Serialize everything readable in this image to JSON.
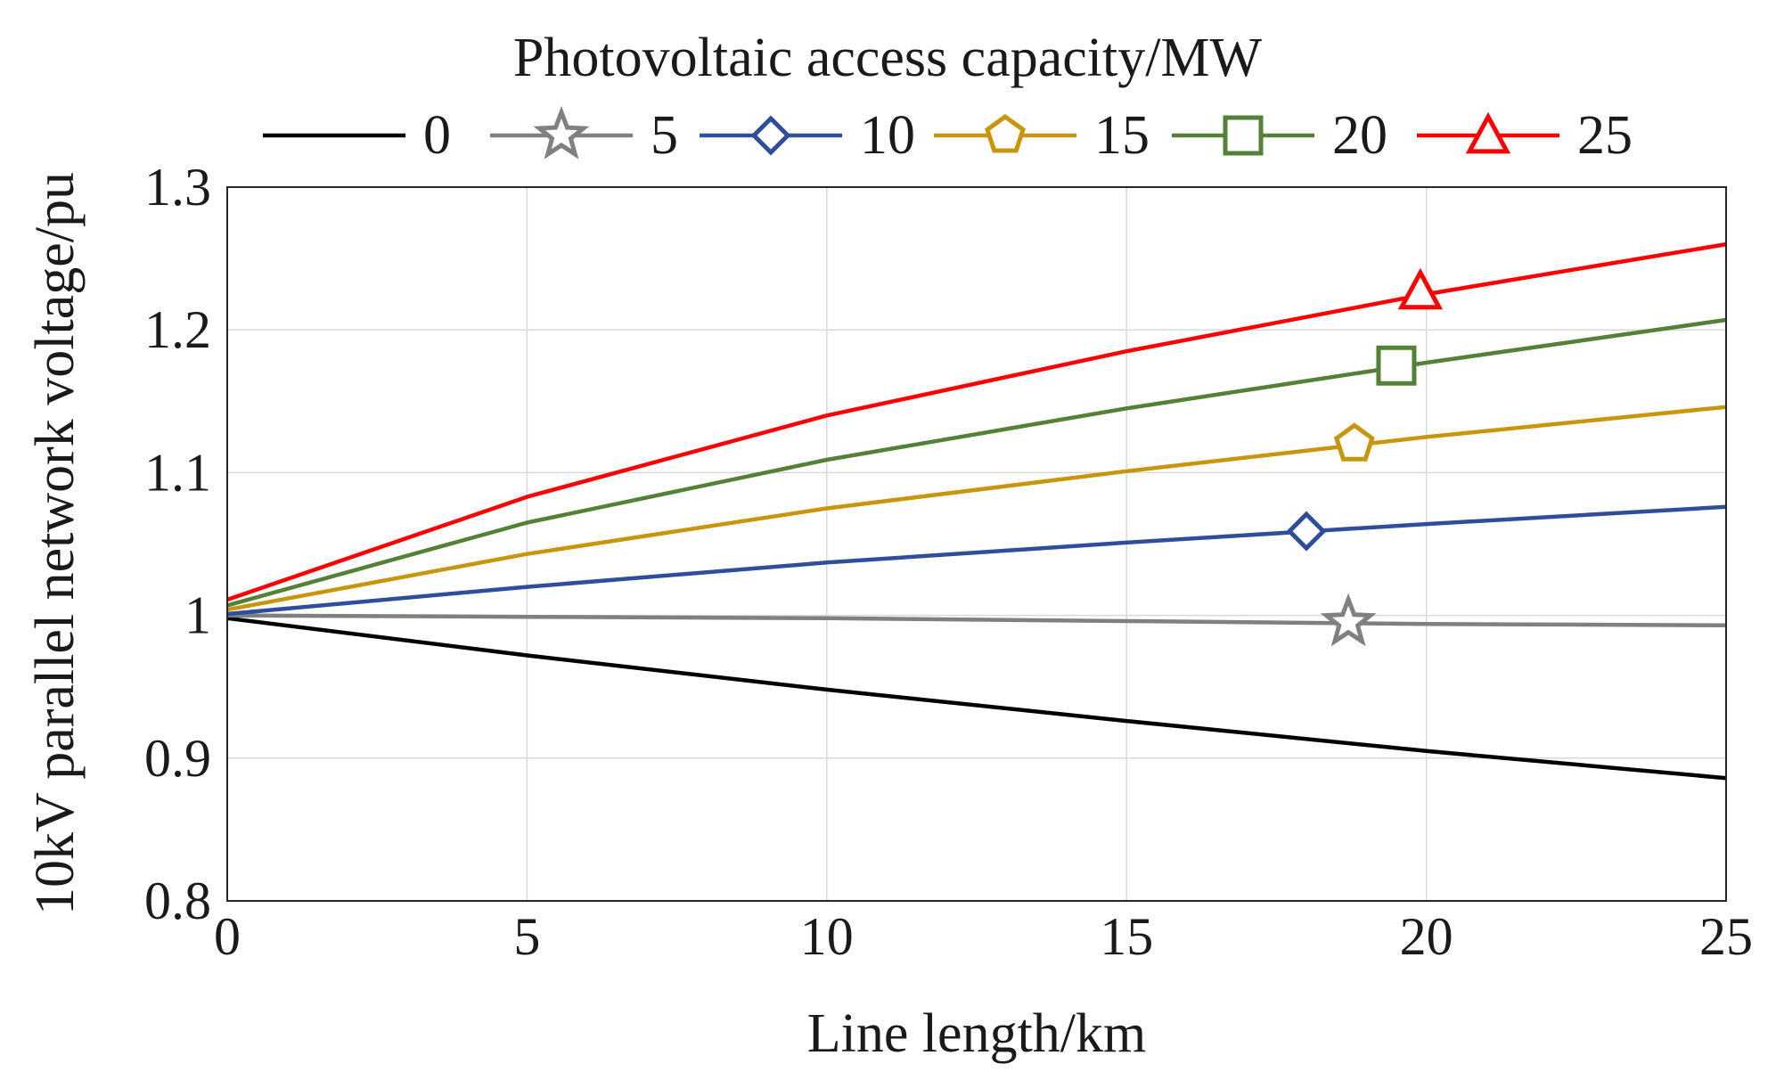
{
  "chart_data": {
    "type": "line",
    "title": "",
    "xlabel": "Line length/km",
    "ylabel": "10kV parallel network voltage/pu",
    "xlim": [
      0,
      25
    ],
    "ylim": [
      0.8,
      1.3
    ],
    "xticks": [
      0,
      5,
      10,
      15,
      20,
      25
    ],
    "yticks": [
      0.8,
      0.9,
      1.0,
      1.1,
      1.2,
      1.3
    ],
    "xtick_labels": [
      "0",
      "5",
      "10",
      "15",
      "20",
      "25"
    ],
    "ytick_labels": [
      "0.8",
      "0.9",
      "1",
      "1.1",
      "1.2",
      "1.3"
    ],
    "grid": true,
    "legend": {
      "title": "Photovoltaic access capacity/MW",
      "placement": "top",
      "orientation": "horizontal"
    },
    "x": [
      0,
      5,
      10,
      15,
      20,
      25
    ],
    "series": [
      {
        "name": "0",
        "color": "#000000",
        "marker": "none",
        "values": [
          0.998,
          0.972,
          0.948,
          0.926,
          0.905,
          0.886
        ]
      },
      {
        "name": "5",
        "color": "#808080",
        "marker": "star",
        "values": [
          1.0,
          0.999,
          0.998,
          0.996,
          0.994,
          0.993
        ],
        "marker_at": [
          18.7,
          0.995
        ]
      },
      {
        "name": "10",
        "color": "#2e4e9c",
        "marker": "diamond",
        "values": [
          1.001,
          1.02,
          1.037,
          1.051,
          1.064,
          1.076
        ],
        "marker_at": [
          18.0,
          1.059
        ]
      },
      {
        "name": "15",
        "color": "#c8960c",
        "marker": "pentagon",
        "values": [
          1.004,
          1.043,
          1.075,
          1.101,
          1.125,
          1.146
        ],
        "marker_at": [
          18.8,
          1.12
        ]
      },
      {
        "name": "20",
        "color": "#538135",
        "marker": "square",
        "values": [
          1.007,
          1.065,
          1.109,
          1.145,
          1.177,
          1.207
        ],
        "marker_at": [
          19.5,
          1.175
        ]
      },
      {
        "name": "25",
        "color": "#ff0000",
        "marker": "triangle",
        "values": [
          1.011,
          1.083,
          1.14,
          1.185,
          1.225,
          1.26
        ],
        "marker_at": [
          19.9,
          1.227
        ]
      }
    ]
  }
}
